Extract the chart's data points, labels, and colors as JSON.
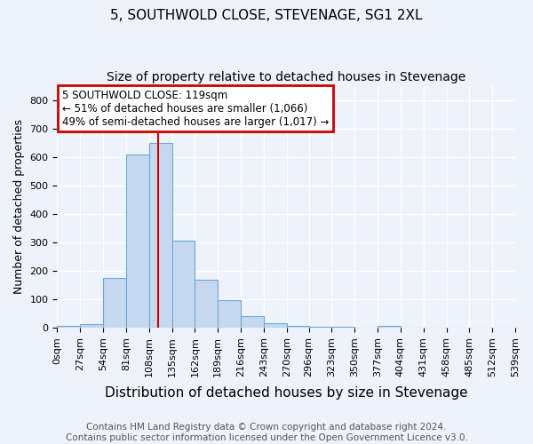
{
  "title": "5, SOUTHWOLD CLOSE, STEVENAGE, SG1 2XL",
  "subtitle": "Size of property relative to detached houses in Stevenage",
  "xlabel": "Distribution of detached houses by size in Stevenage",
  "ylabel": "Number of detached properties",
  "bin_edges": [
    0,
    27,
    54,
    81,
    108,
    135,
    162,
    189,
    216,
    243,
    270,
    296,
    323,
    350,
    377,
    404,
    431,
    458,
    485,
    512,
    539
  ],
  "bar_heights": [
    8,
    12,
    175,
    610,
    650,
    305,
    170,
    98,
    42,
    15,
    8,
    5,
    4,
    0,
    6,
    0,
    0,
    0,
    0,
    0
  ],
  "bar_color": "#c5d8f0",
  "bar_edge_color": "#6aaad4",
  "property_size": 119,
  "red_line_color": "#cc0000",
  "annotation_line1": "5 SOUTHWOLD CLOSE: 119sqm",
  "annotation_line2": "← 51% of detached houses are smaller (1,066)",
  "annotation_line3": "49% of semi-detached houses are larger (1,017) →",
  "annotation_box_color": "#cc0000",
  "ylim": [
    0,
    850
  ],
  "yticks": [
    0,
    100,
    200,
    300,
    400,
    500,
    600,
    700,
    800
  ],
  "footnote": "Contains HM Land Registry data © Crown copyright and database right 2024.\nContains public sector information licensed under the Open Government Licence v3.0.",
  "title_fontsize": 11,
  "subtitle_fontsize": 10,
  "xlabel_fontsize": 11,
  "ylabel_fontsize": 9,
  "tick_fontsize": 8,
  "footnote_fontsize": 7.5,
  "bg_color": "#eef2fa",
  "plot_bg_color": "#eef2fa",
  "grid_color": "#ffffff",
  "annotation_fontsize": 8.5
}
